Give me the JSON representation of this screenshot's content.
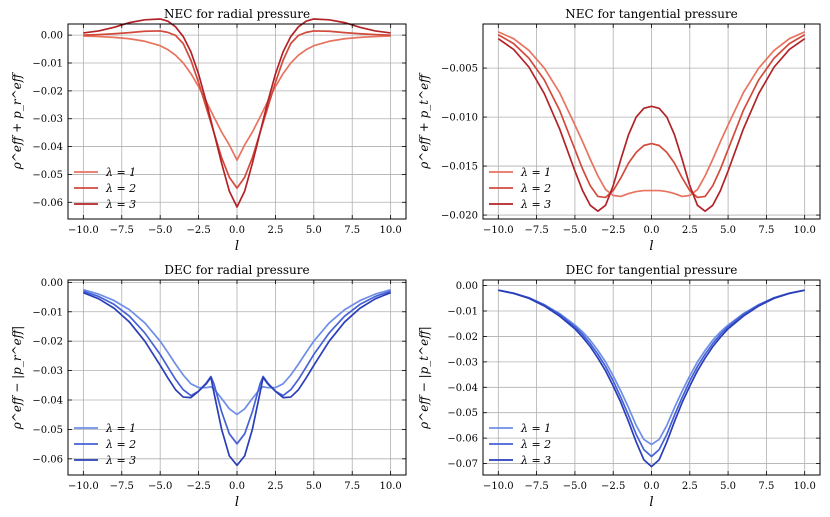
{
  "chart_data": [
    {
      "type": "line",
      "title": "NEC for radial pressure",
      "xlabel": "l",
      "ylabel": "ρ^eff + p_r^eff",
      "xlim": [
        -11,
        11
      ],
      "ylim": [
        -0.066,
        0.004
      ],
      "xticks": [
        -10.0,
        -7.5,
        -5.0,
        -2.5,
        0.0,
        2.5,
        5.0,
        7.5,
        10.0
      ],
      "xtick_labels": [
        "−10.0",
        "−7.5",
        "−5.0",
        "−2.5",
        "0.0",
        "2.5",
        "5.0",
        "7.5",
        "10.0"
      ],
      "yticks": [
        0.0,
        -0.01,
        -0.02,
        -0.03,
        -0.04,
        -0.05,
        -0.06
      ],
      "ytick_labels": [
        "0.00",
        "−0.01",
        "−0.02",
        "−0.03",
        "−0.04",
        "−0.05",
        "−0.06"
      ],
      "grid": true,
      "legend": "lower-left",
      "x": [
        -10,
        -9,
        -8,
        -7,
        -6,
        -5,
        -4.5,
        -4,
        -3.5,
        -3,
        -2.5,
        -2,
        -1.5,
        -1,
        -0.5,
        0,
        0.5,
        1,
        1.5,
        2,
        2.5,
        3,
        3.5,
        4,
        4.5,
        5,
        6,
        7,
        8,
        9,
        10
      ],
      "series": [
        {
          "name": "λ = 1",
          "color": "#e8735f",
          "values": [
            -0.0003,
            -0.0005,
            -0.0008,
            -0.0013,
            -0.0022,
            -0.0038,
            -0.0052,
            -0.0072,
            -0.01,
            -0.0138,
            -0.0185,
            -0.0238,
            -0.0294,
            -0.0348,
            -0.0394,
            -0.0449,
            -0.0394,
            -0.0348,
            -0.0294,
            -0.0238,
            -0.0185,
            -0.0138,
            -0.01,
            -0.0072,
            -0.0052,
            -0.0038,
            -0.0022,
            -0.0013,
            -0.0008,
            -0.0005,
            -0.0003
          ]
        },
        {
          "name": "λ = 2",
          "color": "#d24a3c",
          "values": [
            0.0,
            0.0002,
            0.0005,
            0.0009,
            0.0014,
            0.0015,
            0.001,
            -0.0001,
            -0.003,
            -0.009,
            -0.017,
            -0.026,
            -0.035,
            -0.044,
            -0.051,
            -0.0549,
            -0.051,
            -0.044,
            -0.035,
            -0.026,
            -0.017,
            -0.009,
            -0.003,
            -0.0001,
            0.001,
            0.0015,
            0.0014,
            0.0009,
            0.0005,
            0.0002,
            0.0
          ]
        },
        {
          "name": "λ = 3",
          "color": "#b22328",
          "values": [
            0.0008,
            0.0015,
            0.0028,
            0.0045,
            0.0055,
            0.0058,
            0.005,
            0.003,
            -0.0005,
            -0.006,
            -0.014,
            -0.024,
            -0.035,
            -0.046,
            -0.056,
            -0.0617,
            -0.056,
            -0.046,
            -0.035,
            -0.024,
            -0.014,
            -0.006,
            -0.0005,
            0.003,
            0.005,
            0.0058,
            0.0055,
            0.0045,
            0.0028,
            0.0015,
            0.0008
          ]
        }
      ]
    },
    {
      "type": "line",
      "title": "NEC for tangential pressure",
      "xlabel": "l",
      "ylabel": "ρ^eff + p_t^eff",
      "xlim": [
        -11,
        11
      ],
      "ylim": [
        -0.0204,
        -0.0005
      ],
      "xticks": [
        -10.0,
        -7.5,
        -5.0,
        -2.5,
        0.0,
        2.5,
        5.0,
        7.5,
        10.0
      ],
      "xtick_labels": [
        "−10.0",
        "−7.5",
        "−5.0",
        "−2.5",
        "0.0",
        "2.5",
        "5.0",
        "7.5",
        "10.0"
      ],
      "yticks": [
        -0.005,
        -0.01,
        -0.015,
        -0.02
      ],
      "ytick_labels": [
        "−0.005",
        "−0.010",
        "−0.015",
        "−0.020"
      ],
      "grid": true,
      "legend": "lower-left",
      "x": [
        -10,
        -9,
        -8,
        -7,
        -6,
        -5,
        -4.5,
        -4,
        -3.5,
        -3,
        -2.5,
        -2,
        -1.5,
        -1,
        -0.5,
        0,
        0.5,
        1,
        1.5,
        2,
        2.5,
        3,
        3.5,
        4,
        4.5,
        5,
        6,
        7,
        8,
        9,
        10
      ],
      "series": [
        {
          "name": "λ = 1",
          "color": "#e8735f",
          "values": [
            -0.0013,
            -0.002,
            -0.0032,
            -0.005,
            -0.0075,
            -0.0108,
            -0.0125,
            -0.0143,
            -0.016,
            -0.0174,
            -0.018,
            -0.0181,
            -0.0178,
            -0.0176,
            -0.0175,
            -0.0175,
            -0.0175,
            -0.0176,
            -0.0178,
            -0.0181,
            -0.018,
            -0.0174,
            -0.016,
            -0.0143,
            -0.0125,
            -0.0108,
            -0.0075,
            -0.005,
            -0.0032,
            -0.002,
            -0.0013
          ]
        },
        {
          "name": "λ = 2",
          "color": "#d24a3c",
          "values": [
            -0.0016,
            -0.0025,
            -0.004,
            -0.0062,
            -0.0093,
            -0.0133,
            -0.0153,
            -0.017,
            -0.0181,
            -0.0182,
            -0.0175,
            -0.0162,
            -0.0147,
            -0.0136,
            -0.0129,
            -0.0127,
            -0.0129,
            -0.0136,
            -0.0147,
            -0.0162,
            -0.0175,
            -0.0182,
            -0.0181,
            -0.017,
            -0.0153,
            -0.0133,
            -0.0093,
            -0.0062,
            -0.004,
            -0.0025,
            -0.0016
          ]
        },
        {
          "name": "λ = 3",
          "color": "#b22328",
          "values": [
            -0.002,
            -0.0031,
            -0.0049,
            -0.0076,
            -0.0112,
            -0.0155,
            -0.0175,
            -0.019,
            -0.0196,
            -0.019,
            -0.017,
            -0.0143,
            -0.0118,
            -0.01,
            -0.0091,
            -0.0089,
            -0.0091,
            -0.01,
            -0.0118,
            -0.0143,
            -0.017,
            -0.019,
            -0.0196,
            -0.019,
            -0.0175,
            -0.0155,
            -0.0112,
            -0.0076,
            -0.0049,
            -0.0031,
            -0.002
          ]
        }
      ]
    },
    {
      "type": "line",
      "title": "DEC for radial pressure",
      "xlabel": "l",
      "ylabel": "ρ^eff − |p_r^eff|",
      "xlim": [
        -11,
        11
      ],
      "ylim": [
        -0.0655,
        0.0008
      ],
      "xticks": [
        -10.0,
        -7.5,
        -5.0,
        -2.5,
        0.0,
        2.5,
        5.0,
        7.5,
        10.0
      ],
      "xtick_labels": [
        "−10.0",
        "−7.5",
        "−5.0",
        "−2.5",
        "0.0",
        "2.5",
        "5.0",
        "7.5",
        "10.0"
      ],
      "yticks": [
        0.0,
        -0.01,
        -0.02,
        -0.03,
        -0.04,
        -0.05,
        -0.06
      ],
      "ytick_labels": [
        "0.00",
        "−0.01",
        "−0.02",
        "−0.03",
        "−0.04",
        "−0.05",
        "−0.06"
      ],
      "grid": true,
      "legend": "lower-left",
      "x": [
        -10,
        -9,
        -8,
        -7,
        -6,
        -5,
        -4.5,
        -4,
        -3.5,
        -3,
        -2.5,
        -2,
        -1.7,
        -1.5,
        -1,
        -0.5,
        0,
        0.5,
        1,
        1.5,
        1.7,
        2,
        2.5,
        3,
        3.5,
        4,
        4.5,
        5,
        6,
        7,
        8,
        9,
        10
      ],
      "series": [
        {
          "name": "λ = 1",
          "color": "#6e8ee8",
          "values": [
            -0.0025,
            -0.004,
            -0.0062,
            -0.0093,
            -0.0138,
            -0.02,
            -0.0238,
            -0.0278,
            -0.0315,
            -0.0345,
            -0.0358,
            -0.0358,
            -0.0355,
            -0.0362,
            -0.0395,
            -0.043,
            -0.0449,
            -0.043,
            -0.0395,
            -0.0362,
            -0.0355,
            -0.0358,
            -0.0358,
            -0.0345,
            -0.0315,
            -0.0278,
            -0.0238,
            -0.02,
            -0.0138,
            -0.0093,
            -0.0062,
            -0.004,
            -0.0025
          ]
        },
        {
          "name": "λ = 2",
          "color": "#4561d6",
          "values": [
            -0.003,
            -0.0048,
            -0.0075,
            -0.0115,
            -0.0172,
            -0.0245,
            -0.0288,
            -0.033,
            -0.0365,
            -0.0385,
            -0.037,
            -0.0342,
            -0.032,
            -0.0345,
            -0.044,
            -0.0515,
            -0.0549,
            -0.0515,
            -0.044,
            -0.0345,
            -0.032,
            -0.0342,
            -0.037,
            -0.0385,
            -0.0365,
            -0.033,
            -0.0288,
            -0.0245,
            -0.0172,
            -0.0115,
            -0.0075,
            -0.0048,
            -0.003
          ]
        },
        {
          "name": "λ = 3",
          "color": "#2a3eb8",
          "values": [
            -0.0035,
            -0.0056,
            -0.0088,
            -0.0135,
            -0.02,
            -0.0282,
            -0.0325,
            -0.0365,
            -0.039,
            -0.0392,
            -0.037,
            -0.0345,
            -0.0323,
            -0.0375,
            -0.05,
            -0.059,
            -0.0622,
            -0.059,
            -0.05,
            -0.0375,
            -0.0323,
            -0.0345,
            -0.037,
            -0.0392,
            -0.039,
            -0.0365,
            -0.0325,
            -0.0282,
            -0.02,
            -0.0135,
            -0.0088,
            -0.0056,
            -0.0035
          ]
        }
      ]
    },
    {
      "type": "line",
      "title": "DEC for tangential pressure",
      "xlabel": "l",
      "ylabel": "ρ^eff − |p_t^eff|",
      "xlim": [
        -11,
        11
      ],
      "ylim": [
        -0.0745,
        0.0022
      ],
      "xticks": [
        -10.0,
        -7.5,
        -5.0,
        -2.5,
        0.0,
        2.5,
        5.0,
        7.5,
        10.0
      ],
      "xtick_labels": [
        "−10.0",
        "−7.5",
        "−5.0",
        "−2.5",
        "0.0",
        "2.5",
        "5.0",
        "7.5",
        "10.0"
      ],
      "yticks": [
        0.0,
        -0.01,
        -0.02,
        -0.03,
        -0.04,
        -0.05,
        -0.06,
        -0.07
      ],
      "ytick_labels": [
        "0.00",
        "−0.01",
        "−0.02",
        "−0.03",
        "−0.04",
        "−0.05",
        "−0.06",
        "−0.07"
      ],
      "grid": true,
      "legend": "lower-left",
      "x": [
        -10,
        -9,
        -8,
        -7,
        -6,
        -5,
        -4.5,
        -4,
        -3.5,
        -3,
        -2.5,
        -2,
        -1.5,
        -1,
        -0.5,
        0,
        0.5,
        1,
        1.5,
        2,
        2.5,
        3,
        3.5,
        4,
        4.5,
        5,
        6,
        7,
        8,
        9,
        10
      ],
      "series": [
        {
          "name": "λ = 1",
          "color": "#6e8ee8",
          "values": [
            -0.0018,
            -0.003,
            -0.0048,
            -0.0075,
            -0.011,
            -0.0155,
            -0.0182,
            -0.0215,
            -0.0255,
            -0.03,
            -0.0355,
            -0.0415,
            -0.048,
            -0.055,
            -0.0605,
            -0.0625,
            -0.0605,
            -0.055,
            -0.048,
            -0.0415,
            -0.0355,
            -0.03,
            -0.0255,
            -0.0215,
            -0.0182,
            -0.0155,
            -0.011,
            -0.0075,
            -0.0048,
            -0.003,
            -0.0018
          ]
        },
        {
          "name": "λ = 2",
          "color": "#4561d6",
          "values": [
            -0.0018,
            -0.003,
            -0.0048,
            -0.0076,
            -0.0113,
            -0.0162,
            -0.0192,
            -0.0228,
            -0.027,
            -0.0318,
            -0.0375,
            -0.044,
            -0.051,
            -0.0585,
            -0.0645,
            -0.0672,
            -0.0645,
            -0.0585,
            -0.051,
            -0.044,
            -0.0375,
            -0.0318,
            -0.027,
            -0.0228,
            -0.0192,
            -0.0162,
            -0.0113,
            -0.0076,
            -0.0048,
            -0.003,
            -0.0018
          ]
        },
        {
          "name": "λ = 3",
          "color": "#2a3eb8",
          "values": [
            -0.0018,
            -0.0031,
            -0.005,
            -0.008,
            -0.012,
            -0.017,
            -0.0203,
            -0.024,
            -0.0285,
            -0.0335,
            -0.0395,
            -0.046,
            -0.0535,
            -0.0615,
            -0.0685,
            -0.0712,
            -0.0685,
            -0.0615,
            -0.0535,
            -0.046,
            -0.0395,
            -0.0335,
            -0.0285,
            -0.024,
            -0.0203,
            -0.017,
            -0.012,
            -0.008,
            -0.005,
            -0.0031,
            -0.0018
          ]
        }
      ]
    }
  ]
}
